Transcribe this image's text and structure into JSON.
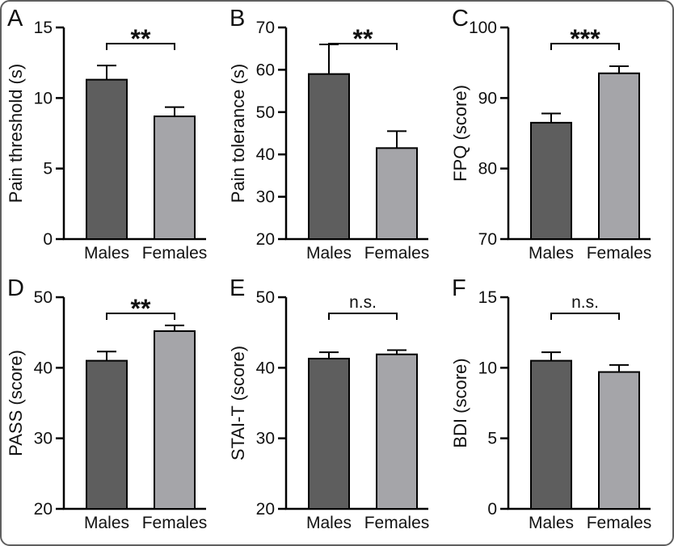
{
  "figure": {
    "background": "#ffffff",
    "border_color": "#5f5f5f",
    "bar_fill_males": "#5e5e5e",
    "bar_fill_females": "#a5a5a9",
    "bar_stroke": "#000000",
    "axis_color": "#000000",
    "categories": [
      "Males",
      "Females"
    ]
  },
  "chart_data": [
    {
      "type": "bar",
      "panel": "A",
      "categories": [
        "Males",
        "Females"
      ],
      "values": [
        11.3,
        8.7
      ],
      "errors": [
        1.0,
        0.65
      ],
      "title": "",
      "xlabel": "",
      "ylabel": "Pain threshold (s)",
      "ylim": [
        0,
        15
      ],
      "yticks": [
        0,
        5,
        10,
        15
      ],
      "significance": "**"
    },
    {
      "type": "bar",
      "panel": "B",
      "categories": [
        "Males",
        "Females"
      ],
      "values": [
        59,
        41.5
      ],
      "errors": [
        7.0,
        4.0
      ],
      "title": "",
      "xlabel": "",
      "ylabel": "Pain tolerance (s)",
      "ylim": [
        20,
        70
      ],
      "yticks": [
        20,
        30,
        40,
        50,
        60,
        70
      ],
      "significance": "**"
    },
    {
      "type": "bar",
      "panel": "C",
      "categories": [
        "Males",
        "Females"
      ],
      "values": [
        86.5,
        93.5
      ],
      "errors": [
        1.3,
        1.0
      ],
      "title": "",
      "xlabel": "",
      "ylabel": "FPQ (score)",
      "ylim": [
        70,
        100
      ],
      "yticks": [
        70,
        80,
        90,
        100
      ],
      "significance": "***"
    },
    {
      "type": "bar",
      "panel": "D",
      "categories": [
        "Males",
        "Females"
      ],
      "values": [
        41.0,
        45.2
      ],
      "errors": [
        1.3,
        0.8
      ],
      "title": "",
      "xlabel": "",
      "ylabel": "PASS (score)",
      "ylim": [
        20,
        50
      ],
      "yticks": [
        20,
        30,
        40,
        50
      ],
      "significance": "**"
    },
    {
      "type": "bar",
      "panel": "E",
      "categories": [
        "Males",
        "Females"
      ],
      "values": [
        41.3,
        41.9
      ],
      "errors": [
        0.9,
        0.6
      ],
      "title": "",
      "xlabel": "",
      "ylabel": "STAI-T (score)",
      "ylim": [
        20,
        50
      ],
      "yticks": [
        20,
        30,
        40,
        50
      ],
      "significance": "n.s."
    },
    {
      "type": "bar",
      "panel": "F",
      "categories": [
        "Males",
        "Females"
      ],
      "values": [
        10.5,
        9.7
      ],
      "errors": [
        0.6,
        0.5
      ],
      "title": "",
      "xlabel": "",
      "ylabel": "BDI (score)",
      "ylim": [
        0,
        15
      ],
      "yticks": [
        0,
        5,
        10,
        15
      ],
      "significance": "n.s."
    }
  ]
}
